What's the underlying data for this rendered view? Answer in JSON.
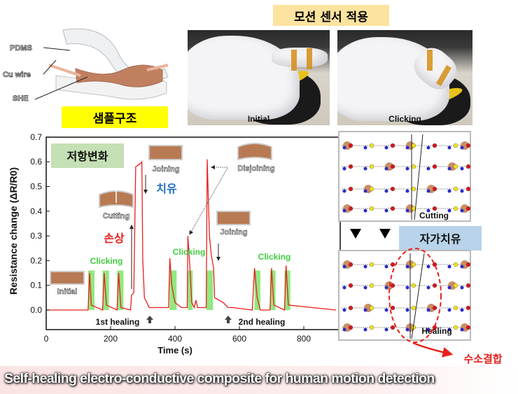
{
  "header": {
    "sample_structure_label": "샘플구조",
    "motion_sensor_label": "모션 센서 적용",
    "layer_labels": [
      "PDMS",
      "Cu wire",
      "SHE"
    ],
    "photos": [
      {
        "caption": "Initial"
      },
      {
        "caption": "Clicking"
      }
    ]
  },
  "colors": {
    "line": "#e8201c",
    "clicking_band": "#7fe36a",
    "clicking_text": "#3fcc3f",
    "damage_text": "#e8201c",
    "heal_text": "#1f6fc4",
    "yellow_label": "#ffff00",
    "tan_label": "#fde3a0",
    "green_label": "#c5e0b4",
    "blue_label": "#b8d3ea"
  },
  "chart_data": {
    "type": "line",
    "xlabel": "Time (s)",
    "ylabel": "Resistance change (ΔR/R0)",
    "xlim": [
      0,
      900
    ],
    "ylim": [
      -0.09,
      0.7
    ],
    "xticks": [
      0,
      200,
      400,
      600,
      800
    ],
    "yticks": [
      0.0,
      0.1,
      0.2,
      0.3,
      0.4,
      0.5,
      0.6,
      0.7
    ],
    "ytick_labels": [
      "0.0",
      "0.1",
      "0.2",
      "0.3",
      "0.4",
      "0.5",
      "0.6",
      "0.7"
    ],
    "grid": false,
    "series": [
      {
        "x": [
          0,
          130,
          135,
          140,
          175,
          180,
          187,
          220,
          225,
          232,
          262,
          265,
          272,
          278,
          290,
          297,
          300,
          305,
          320,
          380,
          384,
          390,
          400,
          420,
          438,
          440,
          446,
          452,
          460,
          465,
          470,
          497,
          500,
          507,
          513,
          520,
          523,
          550,
          565,
          580,
          640,
          647,
          655,
          665,
          695,
          700,
          707,
          740,
          745,
          752,
          900
        ],
        "y": [
          0,
          0,
          0.15,
          0.02,
          0,
          0.15,
          0.02,
          0,
          0.15,
          0.01,
          0,
          0.06,
          0.07,
          0.58,
          0.59,
          0.6,
          0.2,
          0.05,
          0.01,
          0.01,
          0.21,
          0.1,
          0.03,
          0.01,
          0.01,
          0.3,
          0.18,
          0.03,
          0.01,
          0.04,
          0.01,
          0.01,
          0.61,
          0.3,
          0.22,
          0.17,
          0.05,
          0.03,
          0.01,
          0.01,
          0,
          0.17,
          0.05,
          0,
          0,
          0.17,
          0.02,
          0,
          0.18,
          0.02,
          0
        ]
      }
    ],
    "clicking_windows": [
      [
        130,
        150
      ],
      [
        175,
        195
      ],
      [
        220,
        240
      ],
      [
        383,
        405
      ],
      [
        440,
        455
      ],
      [
        497,
        518
      ],
      [
        647,
        665
      ],
      [
        695,
        712
      ],
      [
        740,
        758
      ]
    ],
    "clicking_window_height": 0.16,
    "annotations": {
      "title_box": "저항변화",
      "initial": "Initial",
      "cutting": "Cutting",
      "damage": "손상",
      "joining_1": "Joining",
      "heal": "치유",
      "disjoining": "Disjoining",
      "joining_2": "Joining",
      "clicking_1": "Clicking",
      "clicking_2": "Clicking",
      "clicking_3": "Clicking",
      "healing_1": "1st healing",
      "healing_2": "2nd healing"
    }
  },
  "schematic": {
    "cutting_label": "Cutting",
    "healing_label": "Healing",
    "self_healing_label": "자가치유",
    "hydrogen_bond_label": "수소결합"
  },
  "banner": {
    "text": "Self-healing electro-conductive composite for human motion detection"
  }
}
